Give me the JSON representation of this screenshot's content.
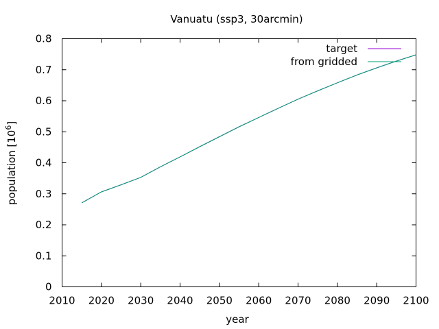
{
  "chart_data": {
    "type": "line",
    "title": "Vanuatu (ssp3, 30arcmin)",
    "xlabel": "year",
    "ylabel": "population [10^6]",
    "ylabel_base": "population [10",
    "ylabel_exp": "6",
    "ylabel_tail": "]",
    "xlim": [
      2010,
      2100
    ],
    "ylim": [
      0,
      0.8
    ],
    "xticks": [
      "2010",
      "2020",
      "2030",
      "2040",
      "2050",
      "2060",
      "2070",
      "2080",
      "2090",
      "2100"
    ],
    "yticks": [
      "0",
      "0.1",
      "0.2",
      "0.3",
      "0.4",
      "0.5",
      "0.6",
      "0.7",
      "0.8"
    ],
    "legend_position": "top-right",
    "grid": false,
    "series": [
      {
        "name": "target",
        "color": "#9400d3",
        "x": [
          2015,
          2020,
          2025,
          2030,
          2035,
          2040,
          2045,
          2050,
          2055,
          2060,
          2065,
          2070,
          2075,
          2080,
          2085,
          2090,
          2095,
          2100
        ],
        "y": [
          0.271,
          0.306,
          0.329,
          0.353,
          0.387,
          0.419,
          0.452,
          0.484,
          0.516,
          0.546,
          0.576,
          0.605,
          0.632,
          0.658,
          0.683,
          0.706,
          0.728,
          0.748
        ]
      },
      {
        "name": "from gridded",
        "color": "#009e73",
        "x": [
          2015,
          2020,
          2025,
          2030,
          2035,
          2040,
          2045,
          2050,
          2055,
          2060,
          2065,
          2070,
          2075,
          2080,
          2085,
          2090,
          2095,
          2100
        ],
        "y": [
          0.271,
          0.306,
          0.329,
          0.353,
          0.387,
          0.419,
          0.452,
          0.484,
          0.516,
          0.546,
          0.576,
          0.605,
          0.632,
          0.658,
          0.683,
          0.706,
          0.728,
          0.748
        ]
      }
    ]
  }
}
